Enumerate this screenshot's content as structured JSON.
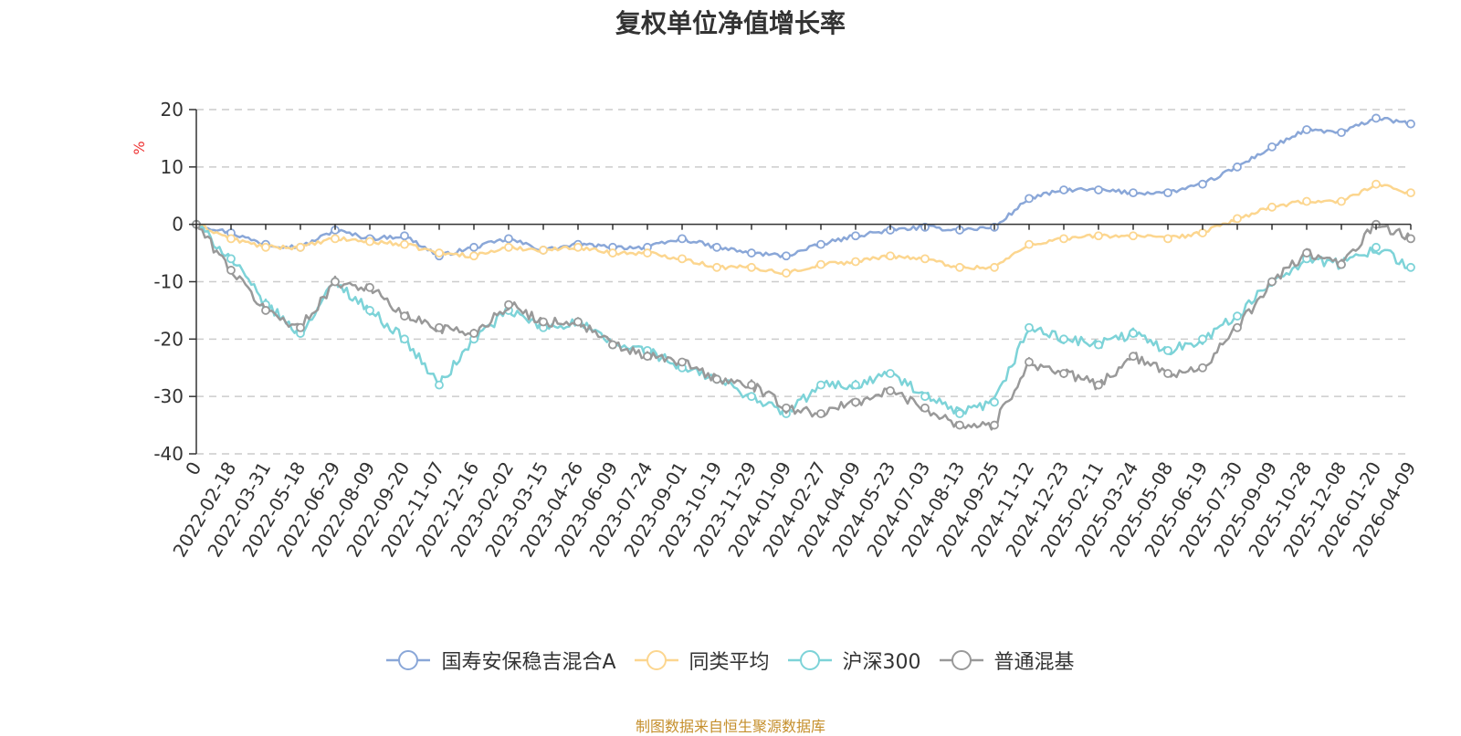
{
  "chart_data": {
    "type": "line",
    "title": "复权单位净值增长率",
    "ylabel": "%",
    "ylim": [
      -40,
      20
    ],
    "yticks": [
      20,
      10,
      0,
      -10,
      -20,
      -30,
      -40
    ],
    "grid": true,
    "legend_position": "bottom",
    "categories": [
      "0",
      "2022-02-18",
      "2022-03-31",
      "2022-05-18",
      "2022-06-29",
      "2022-08-09",
      "2022-09-20",
      "2022-11-07",
      "2022-12-16",
      "2023-02-02",
      "2023-03-15",
      "2023-04-26",
      "2023-06-09",
      "2023-07-24",
      "2023-09-01",
      "2023-10-19",
      "2023-11-29",
      "2024-01-09",
      "2024-02-27",
      "2024-04-09",
      "2024-05-23",
      "2024-07-03",
      "2024-08-13",
      "2024-09-25",
      "2024-11-12",
      "2024-12-23",
      "2025-02-11",
      "2025-03-24",
      "2025-05-08",
      "2025-06-19",
      "2025-07-30",
      "2025-09-09",
      "2025-10-28",
      "2025-12-08",
      "2026-01-20",
      "2026-04-09"
    ],
    "series": [
      {
        "name": "国寿安保稳吉混合A",
        "color": "#8aa7d8",
        "values": [
          0,
          -1.5,
          -3.5,
          -4,
          -1,
          -2.5,
          -2,
          -5.5,
          -4,
          -2.5,
          -4.5,
          -3.5,
          -4,
          -4,
          -2.5,
          -4,
          -5,
          -5.5,
          -3.5,
          -2,
          -1,
          -0.5,
          -1,
          -0.5,
          4.5,
          6,
          6,
          5.5,
          5.5,
          7,
          10,
          13.5,
          16.5,
          16,
          18.5,
          17.5
        ]
      },
      {
        "name": "同类平均",
        "color": "#fcd68f",
        "values": [
          0,
          -2.5,
          -4,
          -4,
          -2.5,
          -3,
          -3.5,
          -5,
          -5.5,
          -4,
          -4.5,
          -4,
          -5,
          -5,
          -6,
          -7.5,
          -7.5,
          -8.5,
          -7,
          -6.5,
          -5.5,
          -6,
          -7.5,
          -7.5,
          -3.5,
          -2.5,
          -2,
          -2,
          -2.5,
          -1.5,
          1,
          3,
          4,
          4,
          7,
          5.5
        ]
      },
      {
        "name": "沪深300",
        "color": "#7dd3d8",
        "values": [
          0,
          -6,
          -14,
          -19,
          -10,
          -15,
          -20,
          -28,
          -20,
          -15,
          -18,
          -17,
          -21,
          -22,
          -25,
          -27,
          -30,
          -33,
          -28,
          -28,
          -26,
          -30,
          -33,
          -31,
          -18,
          -20,
          -21,
          -19,
          -22,
          -20,
          -16,
          -10,
          -6,
          -7,
          -4,
          -7.5
        ]
      },
      {
        "name": "普通混基",
        "color": "#999999",
        "values": [
          0,
          -8,
          -15,
          -18,
          -10,
          -11,
          -16,
          -18,
          -19,
          -14,
          -17,
          -17,
          -21,
          -23,
          -24,
          -27,
          -28,
          -32,
          -33,
          -31,
          -29,
          -32,
          -35,
          -35,
          -24,
          -26,
          -28,
          -23,
          -26,
          -25,
          -18,
          -10,
          -5,
          -7,
          0,
          -2.5
        ]
      }
    ]
  },
  "source": "制图数据来自恒生聚源数据库"
}
